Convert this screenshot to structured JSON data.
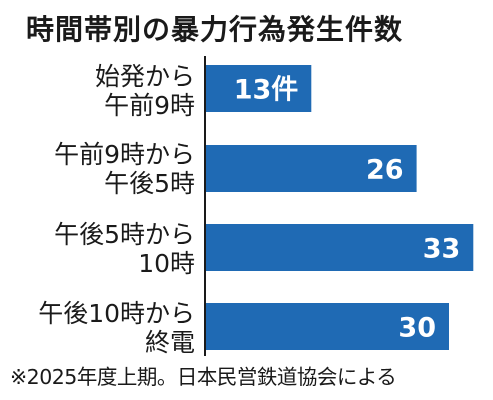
{
  "chart_data": {
    "type": "bar",
    "orientation": "horizontal",
    "title": "時間帯別の暴力行為発生件数",
    "categories": [
      [
        "始発から",
        "午前9時"
      ],
      [
        "午前9時から",
        "午後5時"
      ],
      [
        "午後5時から",
        "10時"
      ],
      [
        "午後10時から",
        "終電"
      ]
    ],
    "values": [
      13,
      26,
      33,
      30
    ],
    "value_labels": [
      "13件",
      "26",
      "33",
      "30"
    ],
    "bar_color": "#1f6ab4",
    "value_label_color": "#ffffff",
    "axis_line": true,
    "grid": false,
    "legend": false
  },
  "note": "※2025年度上期。日本民営鉄道協会による"
}
